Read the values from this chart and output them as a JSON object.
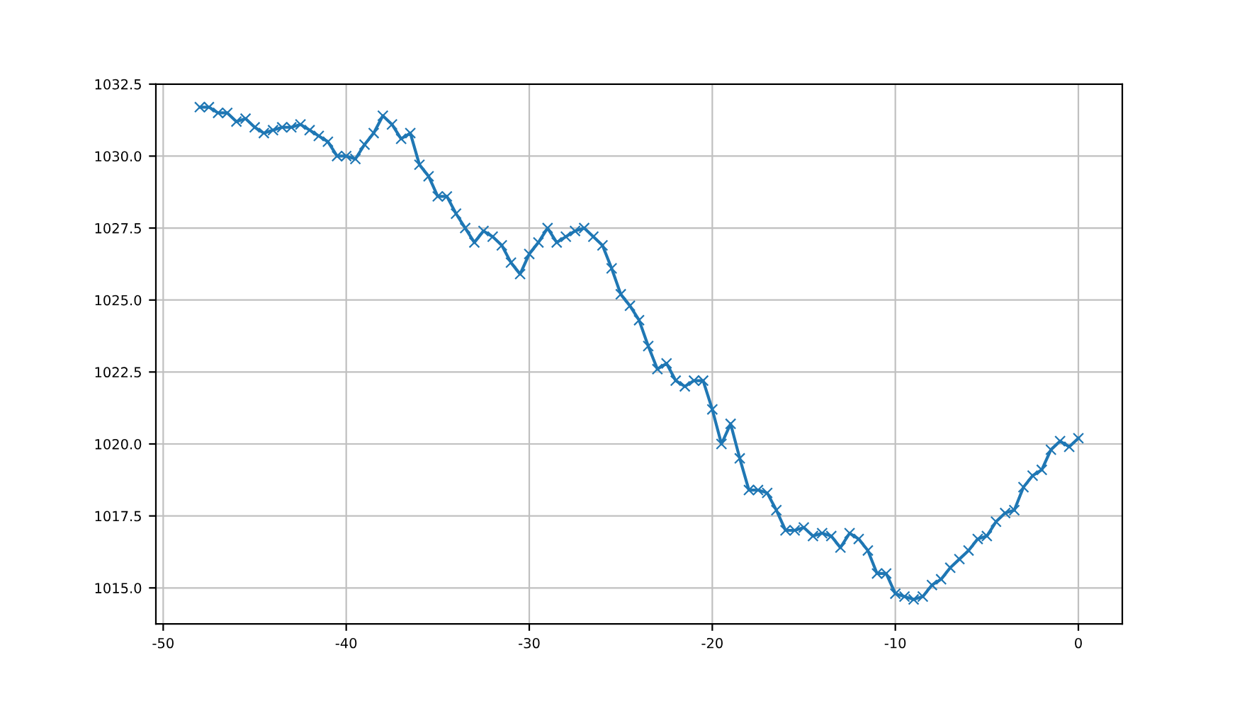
{
  "chart_data": {
    "type": "line",
    "marker": "cross",
    "line_style": "solid",
    "grid": true,
    "x": [
      -48,
      -47.5,
      -47,
      -46.5,
      -46,
      -45.5,
      -45,
      -44.5,
      -44,
      -43.5,
      -43,
      -42.5,
      -42,
      -41.5,
      -41,
      -40.5,
      -40,
      -39.5,
      -39,
      -38.5,
      -38,
      -37.5,
      -37,
      -36.5,
      -36,
      -35.5,
      -35,
      -34.5,
      -34,
      -33.5,
      -33,
      -32.5,
      -32,
      -31.5,
      -31,
      -30.5,
      -30,
      -29.5,
      -29,
      -28.5,
      -28,
      -27.5,
      -27,
      -26.5,
      -26,
      -25.5,
      -25,
      -24.5,
      -24,
      -23.5,
      -23,
      -22.5,
      -22,
      -21.5,
      -21,
      -20.5,
      -20,
      -19.5,
      -19,
      -18.5,
      -18,
      -17.5,
      -17,
      -16.5,
      -16,
      -15.5,
      -15,
      -14.5,
      -14,
      -13.5,
      -13,
      -12.5,
      -12,
      -11.5,
      -11,
      -10.5,
      -10,
      -9.5,
      -9,
      -8.5,
      -8,
      -7.5,
      -7,
      -6.5,
      -6,
      -5.5,
      -5,
      -4.5,
      -4,
      -3.5,
      -3,
      -2.5,
      -2,
      -1.5,
      -1,
      -0.5,
      0
    ],
    "series": [
      {
        "color": "#1f77b4",
        "values": [
          1031.7,
          1031.7,
          1031.5,
          1031.5,
          1031.2,
          1031.3,
          1031.0,
          1030.8,
          1030.9,
          1031.0,
          1031.0,
          1031.1,
          1030.9,
          1030.7,
          1030.5,
          1030.0,
          1030.0,
          1029.9,
          1030.4,
          1030.8,
          1031.4,
          1031.1,
          1030.6,
          1030.8,
          1029.7,
          1029.3,
          1028.6,
          1028.6,
          1028.0,
          1027.5,
          1027.0,
          1027.4,
          1027.2,
          1026.9,
          1026.3,
          1025.9,
          1026.6,
          1027.0,
          1027.5,
          1027.0,
          1027.2,
          1027.4,
          1027.5,
          1027.2,
          1026.9,
          1026.1,
          1025.2,
          1024.8,
          1024.3,
          1023.4,
          1022.6,
          1022.8,
          1022.2,
          1022.0,
          1022.2,
          1022.2,
          1021.2,
          1020.0,
          1020.7,
          1019.5,
          1018.4,
          1018.4,
          1018.3,
          1017.7,
          1017.0,
          1017.0,
          1017.1,
          1016.8,
          1016.9,
          1016.8,
          1016.4,
          1016.9,
          1016.7,
          1016.3,
          1015.5,
          1015.5,
          1014.8,
          1014.7,
          1014.6,
          1014.7,
          1015.1,
          1015.3,
          1015.7,
          1016.0,
          1016.3,
          1016.7,
          1016.8,
          1017.3,
          1017.6,
          1017.7,
          1018.5,
          1018.9,
          1019.1,
          1019.8,
          1020.1,
          1019.9,
          1020.2
        ]
      }
    ],
    "xlim": [
      -50.4,
      2.4
    ],
    "xticks": [
      -50,
      -40,
      -30,
      -20,
      -10,
      0
    ],
    "ylim": [
      1013.75,
      1032.5
    ],
    "yticks": [
      {
        "value": 1015,
        "label": "1015.0"
      },
      {
        "value": 1017.5,
        "label": "1017.5"
      },
      {
        "value": 1020,
        "label": "1020.0"
      },
      {
        "value": 1022.5,
        "label": "1022.5"
      },
      {
        "value": 1025,
        "label": "1025.0"
      },
      {
        "value": 1027.5,
        "label": "1027.5"
      },
      {
        "value": 1030,
        "label": "1030.0"
      },
      {
        "value": 1032.5,
        "label": "1032.5"
      }
    ]
  }
}
